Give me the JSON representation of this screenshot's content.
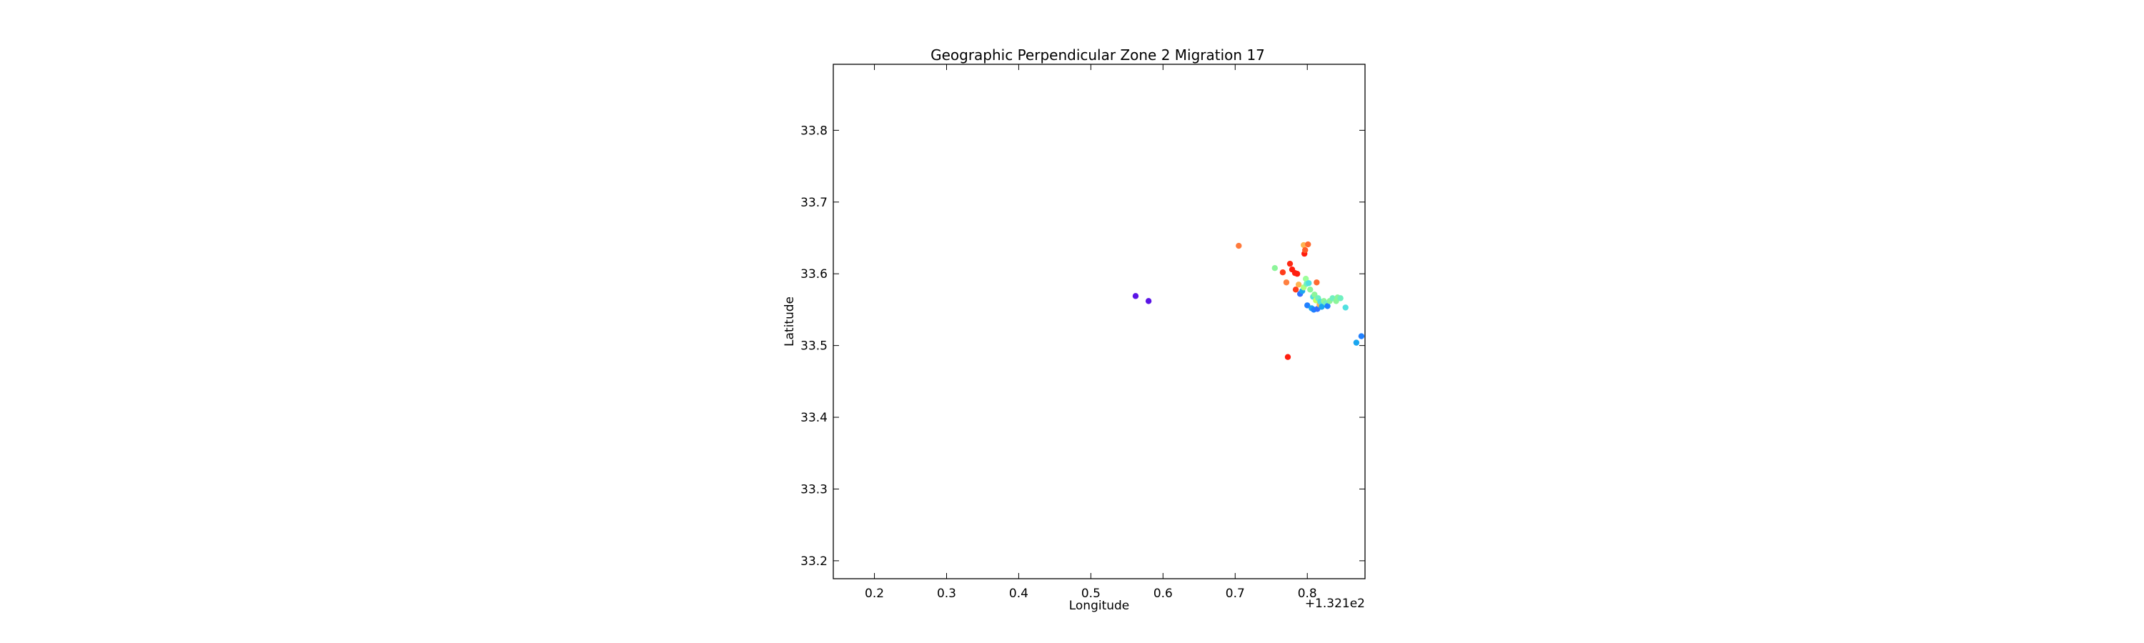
{
  "chart_data": {
    "type": "scatter",
    "title": "Geographic Perpendicular Zone 2 Migration 17",
    "xlabel": "Longitude",
    "ylabel": "Latitude",
    "x_offset_label": "+1.321e2",
    "xlim": [
      0.143,
      0.88
    ],
    "ylim": [
      33.175,
      33.892
    ],
    "xticks": [
      0.2,
      0.3,
      0.4,
      0.5,
      0.6,
      0.7,
      0.8
    ],
    "xtick_labels": [
      "0.2",
      "0.3",
      "0.4",
      "0.5",
      "0.6",
      "0.7",
      "0.8"
    ],
    "yticks": [
      33.2,
      33.3,
      33.4,
      33.5,
      33.6,
      33.7,
      33.8
    ],
    "ytick_labels": [
      "33.2",
      "33.3",
      "33.4",
      "33.5",
      "33.6",
      "33.7",
      "33.8"
    ],
    "grid": false,
    "legend": false,
    "points": [
      {
        "x": 0.562,
        "y": 33.569,
        "color": "#5a14e6"
      },
      {
        "x": 0.58,
        "y": 33.562,
        "color": "#5a14e6"
      },
      {
        "x": 0.705,
        "y": 33.639,
        "color": "#ff7a3c"
      },
      {
        "x": 0.755,
        "y": 33.608,
        "color": "#8cf59a"
      },
      {
        "x": 0.766,
        "y": 33.602,
        "color": "#ff3c1a"
      },
      {
        "x": 0.771,
        "y": 33.588,
        "color": "#ff8040"
      },
      {
        "x": 0.773,
        "y": 33.484,
        "color": "#ff1e0f"
      },
      {
        "x": 0.776,
        "y": 33.614,
        "color": "#ff2a14"
      },
      {
        "x": 0.779,
        "y": 33.606,
        "color": "#ff1e0f"
      },
      {
        "x": 0.783,
        "y": 33.601,
        "color": "#ff1e0f"
      },
      {
        "x": 0.784,
        "y": 33.578,
        "color": "#ff3c1a"
      },
      {
        "x": 0.786,
        "y": 33.6,
        "color": "#ff1e0f"
      },
      {
        "x": 0.788,
        "y": 33.585,
        "color": "#ffb350"
      },
      {
        "x": 0.79,
        "y": 33.572,
        "color": "#3270ff"
      },
      {
        "x": 0.793,
        "y": 33.576,
        "color": "#1aa6f0"
      },
      {
        "x": 0.795,
        "y": 33.581,
        "color": "#b0ff80"
      },
      {
        "x": 0.795,
        "y": 33.64,
        "color": "#ffb350"
      },
      {
        "x": 0.796,
        "y": 33.628,
        "color": "#ff1e0f"
      },
      {
        "x": 0.797,
        "y": 33.633,
        "color": "#ff5a28"
      },
      {
        "x": 0.798,
        "y": 33.593,
        "color": "#9cff9a"
      },
      {
        "x": 0.799,
        "y": 33.586,
        "color": "#70f0c0"
      },
      {
        "x": 0.8,
        "y": 33.556,
        "color": "#2080ff"
      },
      {
        "x": 0.801,
        "y": 33.641,
        "color": "#ff6a30"
      },
      {
        "x": 0.802,
        "y": 33.587,
        "color": "#50e0e0"
      },
      {
        "x": 0.804,
        "y": 33.578,
        "color": "#8cf59a"
      },
      {
        "x": 0.806,
        "y": 33.552,
        "color": "#1aa6f0"
      },
      {
        "x": 0.808,
        "y": 33.568,
        "color": "#50e0e0"
      },
      {
        "x": 0.809,
        "y": 33.55,
        "color": "#2080ff"
      },
      {
        "x": 0.81,
        "y": 33.571,
        "color": "#8cf59a"
      },
      {
        "x": 0.812,
        "y": 33.563,
        "color": "#c8ff60"
      },
      {
        "x": 0.813,
        "y": 33.588,
        "color": "#ff6a30"
      },
      {
        "x": 0.814,
        "y": 33.551,
        "color": "#3270ff"
      },
      {
        "x": 0.815,
        "y": 33.566,
        "color": "#70f0c0"
      },
      {
        "x": 0.817,
        "y": 33.557,
        "color": "#ffb350"
      },
      {
        "x": 0.818,
        "y": 33.561,
        "color": "#50e0e0"
      },
      {
        "x": 0.82,
        "y": 33.554,
        "color": "#1aa6f0"
      },
      {
        "x": 0.823,
        "y": 33.562,
        "color": "#8cf59a"
      },
      {
        "x": 0.826,
        "y": 33.559,
        "color": "#70f0c0"
      },
      {
        "x": 0.828,
        "y": 33.555,
        "color": "#2080ff"
      },
      {
        "x": 0.831,
        "y": 33.562,
        "color": "#8cf59a"
      },
      {
        "x": 0.835,
        "y": 33.566,
        "color": "#70f0c0"
      },
      {
        "x": 0.84,
        "y": 33.562,
        "color": "#8cf59a"
      },
      {
        "x": 0.842,
        "y": 33.567,
        "color": "#8cf59a"
      },
      {
        "x": 0.846,
        "y": 33.566,
        "color": "#70f0c0"
      },
      {
        "x": 0.853,
        "y": 33.553,
        "color": "#50e0e0"
      },
      {
        "x": 0.868,
        "y": 33.504,
        "color": "#1aa6f0"
      },
      {
        "x": 0.875,
        "y": 33.513,
        "color": "#2080ff"
      }
    ]
  }
}
